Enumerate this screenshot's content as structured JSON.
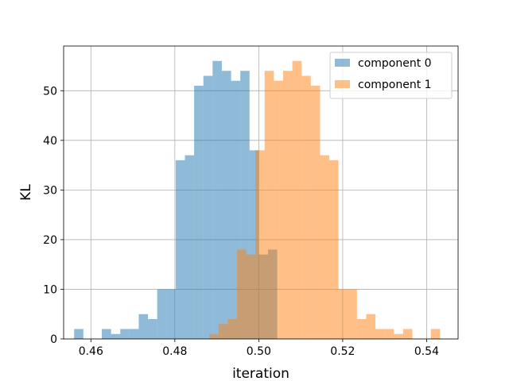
{
  "chart_data": {
    "type": "histogram",
    "xlabel": "iteration",
    "ylabel": "KL",
    "xlim": [
      0.4535,
      0.5475
    ],
    "ylim": [
      0,
      59
    ],
    "x_ticks": [
      0.46,
      0.48,
      0.5,
      0.52,
      0.54
    ],
    "x_tick_labels": [
      "0.46",
      "0.48",
      "0.50",
      "0.52",
      "0.54"
    ],
    "y_ticks": [
      0,
      10,
      20,
      30,
      40,
      50
    ],
    "y_tick_labels": [
      "0",
      "10",
      "20",
      "30",
      "40",
      "50"
    ],
    "grid": true,
    "legend_position": "upper right",
    "series": [
      {
        "name": "component 0",
        "color": "#1f77b4",
        "alpha": 0.5,
        "bin_width": 0.0022,
        "bins": [
          {
            "x": 0.4571,
            "count": 2
          },
          {
            "x": 0.4593,
            "count": 0
          },
          {
            "x": 0.4615,
            "count": 0
          },
          {
            "x": 0.4637,
            "count": 2
          },
          {
            "x": 0.4659,
            "count": 1
          },
          {
            "x": 0.4681,
            "count": 2
          },
          {
            "x": 0.4703,
            "count": 2
          },
          {
            "x": 0.4725,
            "count": 5
          },
          {
            "x": 0.4747,
            "count": 4
          },
          {
            "x": 0.4769,
            "count": 10
          },
          {
            "x": 0.4791,
            "count": 10
          },
          {
            "x": 0.4813,
            "count": 36
          },
          {
            "x": 0.4835,
            "count": 37
          },
          {
            "x": 0.4857,
            "count": 51
          },
          {
            "x": 0.4879,
            "count": 53
          },
          {
            "x": 0.4901,
            "count": 56
          },
          {
            "x": 0.4923,
            "count": 54
          },
          {
            "x": 0.4945,
            "count": 52
          },
          {
            "x": 0.4967,
            "count": 54
          },
          {
            "x": 0.4989,
            "count": 38
          },
          {
            "x": 0.5011,
            "count": 17
          },
          {
            "x": 0.5033,
            "count": 18
          }
        ]
      },
      {
        "name": "component 1",
        "color": "#ff7f0e",
        "alpha": 0.5,
        "bin_width": 0.0022,
        "bins": [
          {
            "x": 0.4893,
            "count": 1
          },
          {
            "x": 0.4915,
            "count": 3
          },
          {
            "x": 0.4937,
            "count": 4
          },
          {
            "x": 0.4959,
            "count": 18
          },
          {
            "x": 0.4981,
            "count": 17
          },
          {
            "x": 0.5003,
            "count": 38
          },
          {
            "x": 0.5025,
            "count": 54
          },
          {
            "x": 0.5047,
            "count": 52
          },
          {
            "x": 0.5069,
            "count": 54
          },
          {
            "x": 0.5091,
            "count": 56
          },
          {
            "x": 0.5113,
            "count": 53
          },
          {
            "x": 0.5135,
            "count": 51
          },
          {
            "x": 0.5157,
            "count": 37
          },
          {
            "x": 0.5179,
            "count": 36
          },
          {
            "x": 0.5201,
            "count": 10
          },
          {
            "x": 0.5223,
            "count": 10
          },
          {
            "x": 0.5245,
            "count": 4
          },
          {
            "x": 0.5267,
            "count": 5
          },
          {
            "x": 0.5289,
            "count": 2
          },
          {
            "x": 0.5311,
            "count": 2
          },
          {
            "x": 0.5333,
            "count": 1
          },
          {
            "x": 0.5355,
            "count": 2
          },
          {
            "x": 0.5377,
            "count": 0
          },
          {
            "x": 0.5399,
            "count": 0
          },
          {
            "x": 0.5421,
            "count": 2
          }
        ]
      }
    ]
  }
}
